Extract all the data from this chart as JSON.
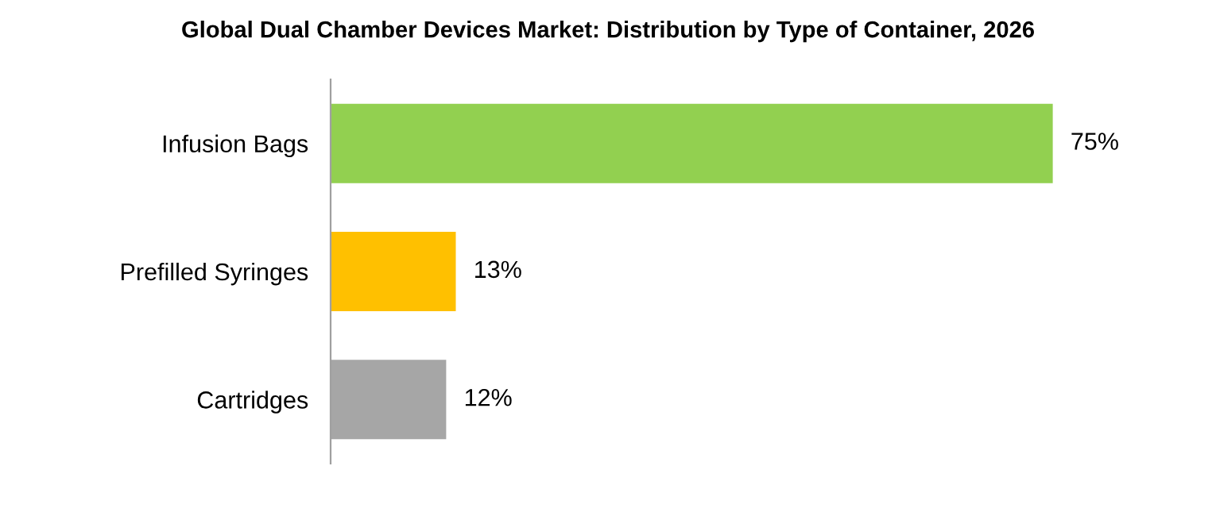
{
  "chart_data": {
    "type": "bar",
    "orientation": "horizontal",
    "title": "Global Dual Chamber Devices Market: Distribution by Type of Container, 2026",
    "categories": [
      "Infusion Bags",
      "Prefilled Syringes",
      "Cartridges"
    ],
    "values": [
      75,
      13,
      12
    ],
    "colors": [
      "#92d050",
      "#ffc000",
      "#a6a6a6"
    ],
    "value_labels": [
      "75%",
      "13%",
      "12%"
    ],
    "grid": false,
    "legend": false
  }
}
